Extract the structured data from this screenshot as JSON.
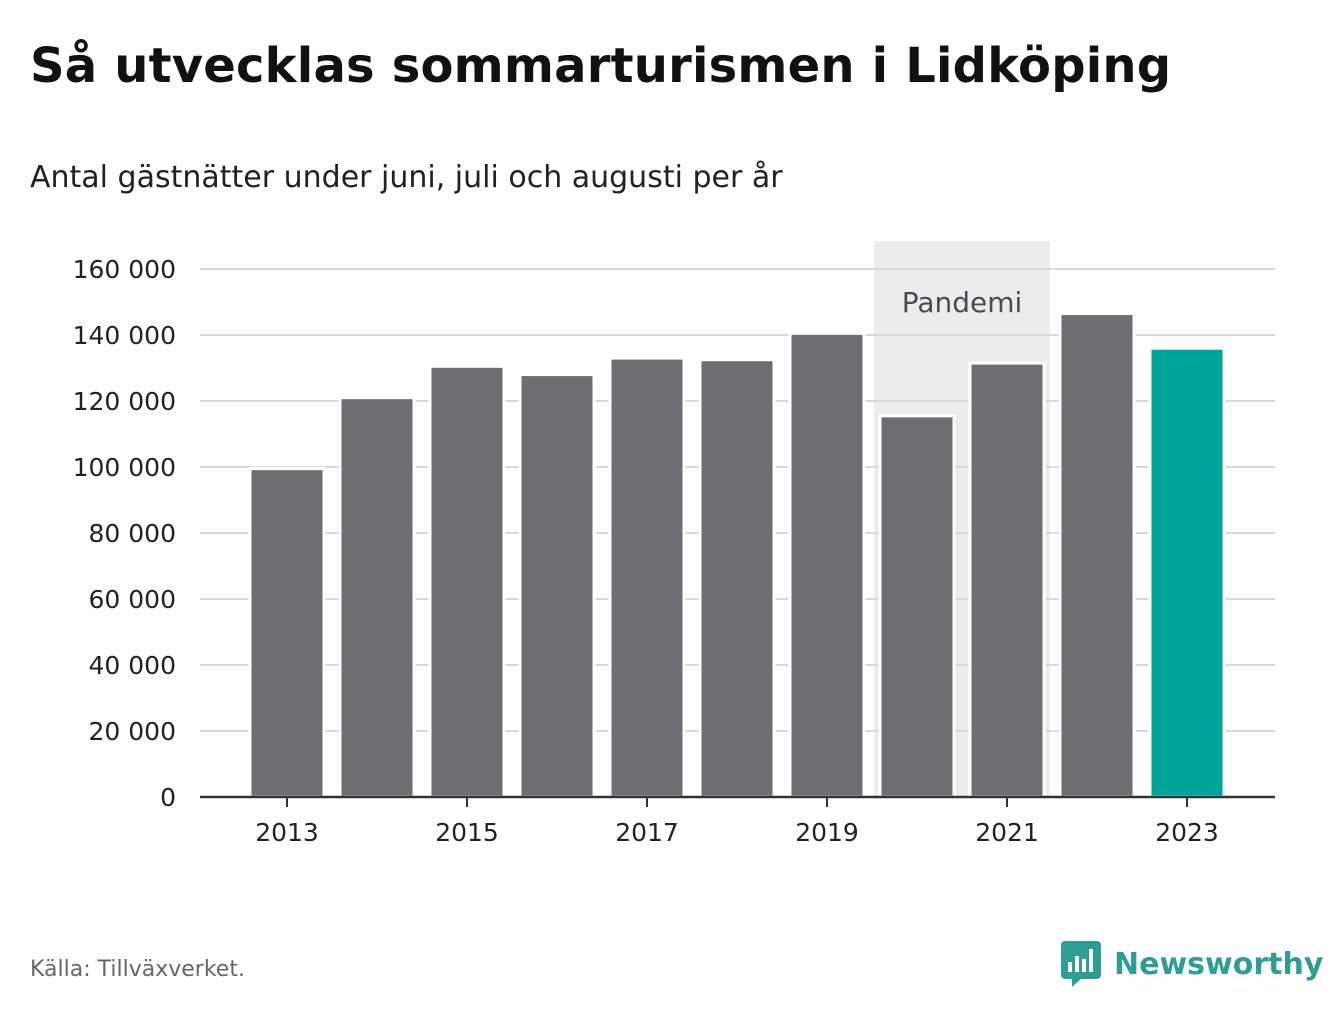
{
  "title": "Så utvecklas sommarturismen i Lidköping",
  "subtitle": "Antal gästnätter under juni, juli och augusti per år",
  "source": "Källa: Tillväxverket.",
  "brand": "Newsworthy",
  "colors": {
    "bar": "#6e6d72",
    "highlight": "#00a59a",
    "shade": "#ececec",
    "grid": "#d9d9d9",
    "axis": "#333333",
    "brand": "#2e9e95"
  },
  "chart_data": {
    "type": "bar",
    "title": "Så utvecklas sommarturismen i Lidköping",
    "subtitle": "Antal gästnätter under juni, juli och augusti per år",
    "categories": [
      "2013",
      "2014",
      "2015",
      "2016",
      "2017",
      "2018",
      "2019",
      "2020",
      "2021",
      "2022",
      "2023"
    ],
    "values": [
      99500,
      121000,
      130500,
      128000,
      133000,
      132500,
      140500,
      115500,
      131500,
      146500,
      136000
    ],
    "highlight_category": "2023",
    "ylim": [
      0,
      160000
    ],
    "yticks": [
      0,
      20000,
      40000,
      60000,
      80000,
      100000,
      120000,
      140000,
      160000
    ],
    "ytick_labels": [
      "0",
      "20 000",
      "40 000",
      "60 000",
      "80 000",
      "100 000",
      "120 000",
      "140 000",
      "160 000"
    ],
    "xtick_labels": [
      "2013",
      "2015",
      "2017",
      "2019",
      "2021",
      "2023"
    ],
    "grid": true,
    "annotation": {
      "label": "Pandemi",
      "from": "2020",
      "to": "2021"
    }
  }
}
